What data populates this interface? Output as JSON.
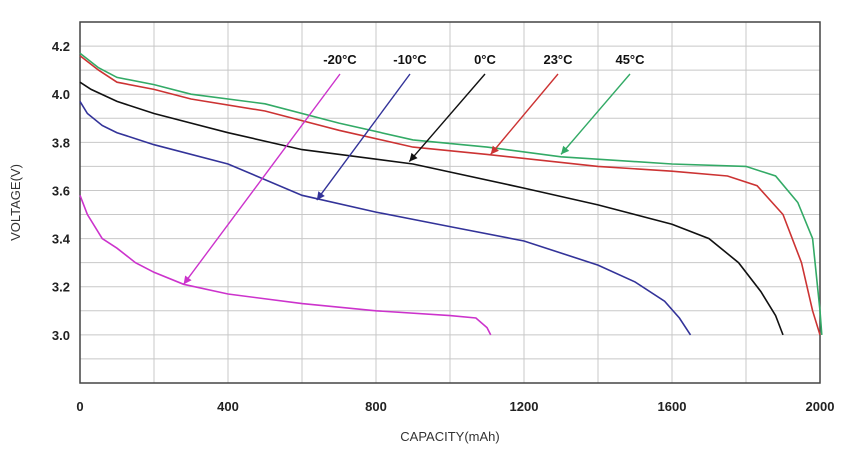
{
  "chart_data": {
    "type": "line",
    "title": "",
    "xlabel": "CAPACITY(mAh)",
    "ylabel": "VOLTAGE(V)",
    "xlim": [
      0,
      2000
    ],
    "ylim": [
      2.8,
      4.3
    ],
    "xticks": [
      0,
      400,
      800,
      1200,
      1600,
      2000
    ],
    "yticks": [
      3.0,
      3.2,
      3.4,
      3.6,
      3.8,
      4.0,
      4.2
    ],
    "x_minor_step": 200,
    "y_minor_step": 0.1,
    "grid": true,
    "series": [
      {
        "name": "-20°C",
        "color": "#cc33cc",
        "points": [
          [
            0,
            3.58
          ],
          [
            20,
            3.5
          ],
          [
            60,
            3.4
          ],
          [
            100,
            3.36
          ],
          [
            150,
            3.3
          ],
          [
            200,
            3.26
          ],
          [
            280,
            3.21
          ],
          [
            400,
            3.17
          ],
          [
            600,
            3.13
          ],
          [
            800,
            3.1
          ],
          [
            1000,
            3.08
          ],
          [
            1070,
            3.07
          ],
          [
            1100,
            3.03
          ],
          [
            1110,
            3.0
          ]
        ],
        "arrow_to": [
          280,
          3.21
        ]
      },
      {
        "name": "-10°C",
        "color": "#333399",
        "points": [
          [
            0,
            3.97
          ],
          [
            20,
            3.92
          ],
          [
            60,
            3.87
          ],
          [
            100,
            3.84
          ],
          [
            200,
            3.79
          ],
          [
            400,
            3.71
          ],
          [
            600,
            3.58
          ],
          [
            800,
            3.51
          ],
          [
            1000,
            3.45
          ],
          [
            1200,
            3.39
          ],
          [
            1400,
            3.29
          ],
          [
            1500,
            3.22
          ],
          [
            1580,
            3.14
          ],
          [
            1620,
            3.07
          ],
          [
            1650,
            3.0
          ]
        ],
        "arrow_to": [
          640,
          3.56
        ]
      },
      {
        "name": "0°C",
        "color": "#111111",
        "points": [
          [
            0,
            4.05
          ],
          [
            30,
            4.02
          ],
          [
            100,
            3.97
          ],
          [
            200,
            3.92
          ],
          [
            400,
            3.84
          ],
          [
            600,
            3.77
          ],
          [
            900,
            3.71
          ],
          [
            1200,
            3.61
          ],
          [
            1400,
            3.54
          ],
          [
            1600,
            3.46
          ],
          [
            1700,
            3.4
          ],
          [
            1780,
            3.3
          ],
          [
            1840,
            3.18
          ],
          [
            1880,
            3.08
          ],
          [
            1900,
            3.0
          ]
        ],
        "arrow_to": [
          890,
          3.72
        ]
      },
      {
        "name": "23°C",
        "color": "#cc3333",
        "points": [
          [
            0,
            4.16
          ],
          [
            50,
            4.1
          ],
          [
            100,
            4.05
          ],
          [
            200,
            4.02
          ],
          [
            300,
            3.98
          ],
          [
            500,
            3.93
          ],
          [
            700,
            3.85
          ],
          [
            900,
            3.78
          ],
          [
            1100,
            3.75
          ],
          [
            1400,
            3.7
          ],
          [
            1600,
            3.68
          ],
          [
            1750,
            3.66
          ],
          [
            1830,
            3.62
          ],
          [
            1900,
            3.5
          ],
          [
            1950,
            3.3
          ],
          [
            1980,
            3.1
          ],
          [
            2000,
            3.0
          ]
        ],
        "arrow_to": [
          1110,
          3.75
        ]
      },
      {
        "name": "45°C",
        "color": "#33aa66",
        "points": [
          [
            0,
            4.17
          ],
          [
            50,
            4.11
          ],
          [
            100,
            4.07
          ],
          [
            200,
            4.04
          ],
          [
            300,
            4.0
          ],
          [
            500,
            3.96
          ],
          [
            700,
            3.88
          ],
          [
            900,
            3.81
          ],
          [
            1100,
            3.78
          ],
          [
            1300,
            3.74
          ],
          [
            1600,
            3.71
          ],
          [
            1800,
            3.7
          ],
          [
            1880,
            3.66
          ],
          [
            1940,
            3.55
          ],
          [
            1980,
            3.4
          ],
          [
            2000,
            3.1
          ],
          [
            2005,
            3.0
          ]
        ],
        "arrow_to": [
          1300,
          3.75
        ]
      }
    ]
  }
}
